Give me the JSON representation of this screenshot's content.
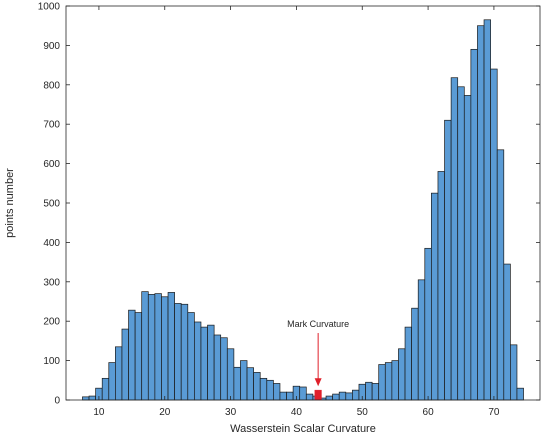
{
  "chart_data": {
    "type": "bar",
    "xlabel": "Wasserstein Scalar Curvature",
    "ylabel": "points number",
    "xlim": [
      5,
      77
    ],
    "ylim": [
      0,
      1000
    ],
    "xticks": [
      10,
      20,
      30,
      40,
      50,
      60,
      70
    ],
    "yticks": [
      0,
      100,
      200,
      300,
      400,
      500,
      600,
      700,
      800,
      900,
      1000
    ],
    "bin_width": 1,
    "bar_color": "#5a9bd5",
    "bar_edge_color": "#1a1a1a",
    "grid": false,
    "bins": [
      {
        "x": 8,
        "value": 8
      },
      {
        "x": 9,
        "value": 10
      },
      {
        "x": 10,
        "value": 30
      },
      {
        "x": 11,
        "value": 55
      },
      {
        "x": 12,
        "value": 95
      },
      {
        "x": 13,
        "value": 135
      },
      {
        "x": 14,
        "value": 180
      },
      {
        "x": 15,
        "value": 228
      },
      {
        "x": 16,
        "value": 222
      },
      {
        "x": 17,
        "value": 275
      },
      {
        "x": 18,
        "value": 268
      },
      {
        "x": 19,
        "value": 270
      },
      {
        "x": 20,
        "value": 262
      },
      {
        "x": 21,
        "value": 273
      },
      {
        "x": 22,
        "value": 245
      },
      {
        "x": 23,
        "value": 243
      },
      {
        "x": 24,
        "value": 222
      },
      {
        "x": 25,
        "value": 198
      },
      {
        "x": 26,
        "value": 185
      },
      {
        "x": 27,
        "value": 190
      },
      {
        "x": 28,
        "value": 165
      },
      {
        "x": 29,
        "value": 158
      },
      {
        "x": 30,
        "value": 130
      },
      {
        "x": 31,
        "value": 83
      },
      {
        "x": 32,
        "value": 100
      },
      {
        "x": 33,
        "value": 82
      },
      {
        "x": 34,
        "value": 70
      },
      {
        "x": 35,
        "value": 55
      },
      {
        "x": 36,
        "value": 50
      },
      {
        "x": 37,
        "value": 42
      },
      {
        "x": 38,
        "value": 20
      },
      {
        "x": 39,
        "value": 20
      },
      {
        "x": 40,
        "value": 35
      },
      {
        "x": 41,
        "value": 33
      },
      {
        "x": 42,
        "value": 15
      },
      {
        "x": 43,
        "value": 10
      },
      {
        "x": 44,
        "value": 5
      },
      {
        "x": 45,
        "value": 10
      },
      {
        "x": 46,
        "value": 15
      },
      {
        "x": 47,
        "value": 20
      },
      {
        "x": 48,
        "value": 18
      },
      {
        "x": 49,
        "value": 25
      },
      {
        "x": 50,
        "value": 40
      },
      {
        "x": 51,
        "value": 45
      },
      {
        "x": 52,
        "value": 42
      },
      {
        "x": 53,
        "value": 90
      },
      {
        "x": 54,
        "value": 95
      },
      {
        "x": 55,
        "value": 100
      },
      {
        "x": 56,
        "value": 130
      },
      {
        "x": 57,
        "value": 185
      },
      {
        "x": 58,
        "value": 233
      },
      {
        "x": 59,
        "value": 305
      },
      {
        "x": 60,
        "value": 385
      },
      {
        "x": 61,
        "value": 525
      },
      {
        "x": 62,
        "value": 580
      },
      {
        "x": 63,
        "value": 710
      },
      {
        "x": 64,
        "value": 818
      },
      {
        "x": 65,
        "value": 795
      },
      {
        "x": 66,
        "value": 773
      },
      {
        "x": 67,
        "value": 890
      },
      {
        "x": 68,
        "value": 950
      },
      {
        "x": 69,
        "value": 965
      },
      {
        "x": 70,
        "value": 840
      },
      {
        "x": 71,
        "value": 635
      },
      {
        "x": 72,
        "value": 345
      },
      {
        "x": 73,
        "value": 140
      },
      {
        "x": 74,
        "value": 30
      }
    ],
    "highlight": {
      "x": 43.3,
      "value": 25,
      "color": "#e0202a"
    },
    "annotation": {
      "text": "Mark Curvature",
      "x": 43.3,
      "arrow_from": 170,
      "arrow_to": 35,
      "arrow_color": "#e0202a"
    }
  }
}
